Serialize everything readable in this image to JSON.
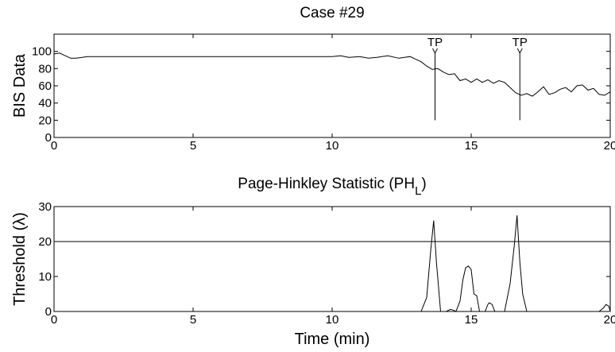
{
  "chart_data": [
    {
      "type": "line",
      "title": "Case #29",
      "xlabel": "",
      "ylabel": "BIS Data",
      "xlim": [
        0,
        20
      ],
      "ylim": [
        0,
        120
      ],
      "xticks": [
        0,
        5,
        10,
        15,
        20
      ],
      "yticks": [
        0,
        20,
        40,
        60,
        80,
        100
      ],
      "grid": false,
      "series": [
        {
          "x": [
            0,
            0.2,
            0.4,
            0.6,
            0.8,
            1.0,
            1.2,
            1.4,
            2,
            4,
            6,
            8,
            10,
            10.3,
            10.6,
            11,
            11.3,
            11.6,
            12,
            12.4,
            12.8,
            13.0,
            13.2,
            13.4,
            13.6,
            13.8,
            14.0,
            14.2,
            14.4,
            14.6,
            14.8,
            15.0,
            15.2,
            15.4,
            15.6,
            15.8,
            16.0,
            16.2,
            16.4,
            16.6,
            16.8,
            17.0,
            17.2,
            17.4,
            17.6,
            17.8,
            18.0,
            18.2,
            18.4,
            18.6,
            18.8,
            19.0,
            19.2,
            19.4,
            19.6,
            19.8,
            20.0
          ],
          "y": [
            97,
            98,
            95,
            92,
            92,
            93,
            94,
            94,
            94,
            94,
            94,
            94,
            94,
            95,
            93,
            94,
            92,
            93,
            95,
            92,
            94,
            91,
            88,
            83,
            79,
            80,
            76,
            73,
            74,
            66,
            68,
            64,
            68,
            64,
            67,
            63,
            66,
            64,
            58,
            52,
            49,
            51,
            48,
            53,
            59,
            50,
            52,
            56,
            58,
            53,
            60,
            61,
            55,
            57,
            50,
            49,
            53
          ]
        }
      ],
      "annotations": [
        {
          "label": "TP",
          "x": 13.7,
          "y_top": 85,
          "y_bottom": 20
        },
        {
          "label": "TP",
          "x": 16.75,
          "y_top": 85,
          "y_bottom": 20
        }
      ]
    },
    {
      "type": "line",
      "title": "Page-Hinkley Statistic (PH",
      "title_sub": "L",
      "title_suffix": ")",
      "xlabel": "Time (min)",
      "ylabel": "Threshold (λ)",
      "xlim": [
        0,
        20
      ],
      "ylim": [
        0,
        30
      ],
      "xticks": [
        0,
        5,
        10,
        15,
        20
      ],
      "yticks": [
        0,
        10,
        20,
        30
      ],
      "grid": false,
      "threshold": 20,
      "series": [
        {
          "x": [
            0,
            13.2,
            13.4,
            13.55,
            13.65,
            13.75,
            13.9,
            14.1,
            14.25,
            14.35,
            14.45,
            14.6,
            14.7,
            14.8,
            14.9,
            15.0,
            15.1,
            15.2,
            15.3,
            15.4,
            15.5,
            15.6,
            15.65,
            15.75,
            15.85,
            15.9,
            16.2,
            16.4,
            16.55,
            16.65,
            16.75,
            16.85,
            17.0,
            17.2,
            19.6,
            19.75,
            19.85,
            19.95,
            20.0
          ],
          "y": [
            0,
            0,
            4,
            18,
            26,
            14,
            0,
            0,
            0.6,
            0.4,
            0,
            3,
            9,
            12.5,
            13,
            12,
            5,
            4.5,
            0,
            0,
            0,
            2,
            2.5,
            2,
            0,
            0,
            0,
            8,
            19,
            27.5,
            14,
            5,
            0,
            0,
            0,
            1,
            2,
            1.5,
            0
          ]
        }
      ]
    }
  ]
}
